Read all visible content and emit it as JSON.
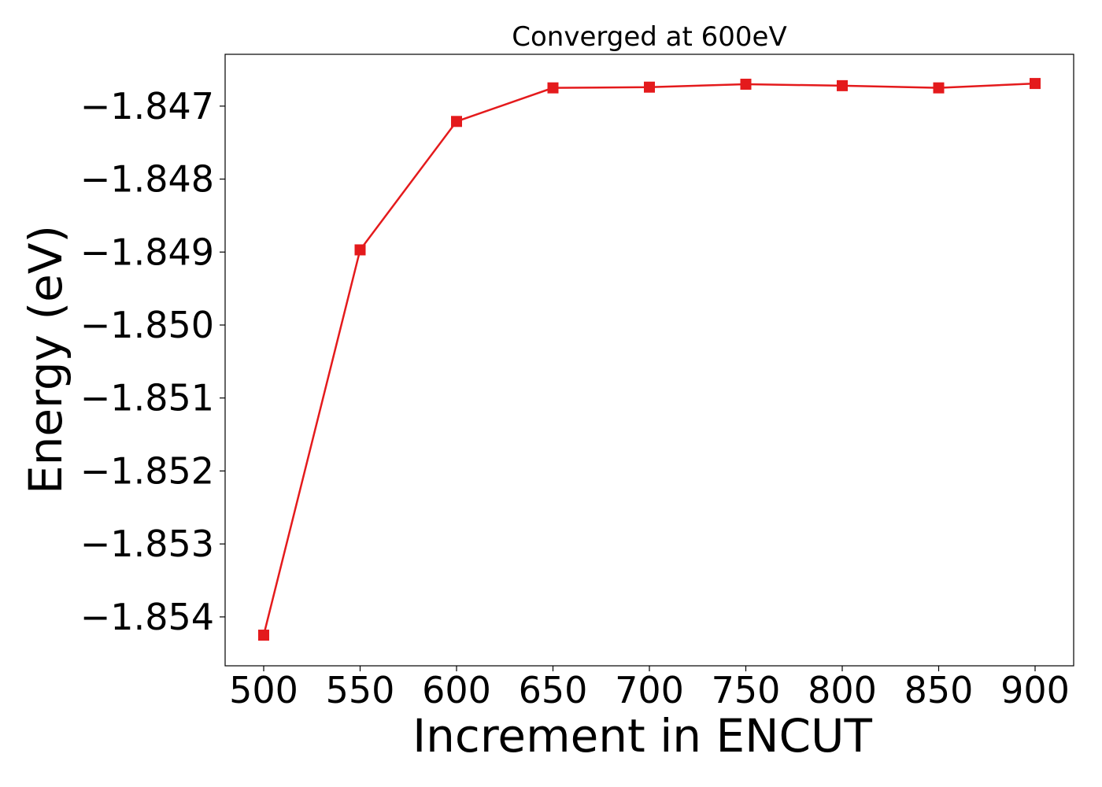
{
  "chart_data": {
    "type": "line",
    "title": "Converged at 600eV",
    "xlabel": "Increment in ENCUT",
    "ylabel": "Energy (eV)",
    "x": [
      500,
      550,
      600,
      650,
      700,
      750,
      800,
      850,
      900
    ],
    "series": [
      {
        "values": [
          -1.85425,
          -1.84897,
          -1.84721,
          -1.84675,
          -1.84674,
          -1.8467,
          -1.84672,
          -1.84675,
          -1.84669
        ],
        "color": "#e41a1c",
        "marker": "square"
      }
    ],
    "xticks": [
      500,
      550,
      600,
      650,
      700,
      750,
      800,
      850,
      900
    ],
    "xtick_labels": [
      "500",
      "550",
      "600",
      "650",
      "700",
      "750",
      "800",
      "850",
      "900"
    ],
    "yticks": [
      -1.854,
      -1.853,
      -1.852,
      -1.851,
      -1.85,
      -1.849,
      -1.848,
      -1.847
    ],
    "ytick_labels": [
      "−1.854",
      "−1.853",
      "−1.852",
      "−1.851",
      "−1.850",
      "−1.849",
      "−1.848",
      "−1.847"
    ],
    "xlim": [
      480,
      920
    ],
    "ylim": [
      -1.85467,
      -1.84629
    ],
    "grid": false
  }
}
